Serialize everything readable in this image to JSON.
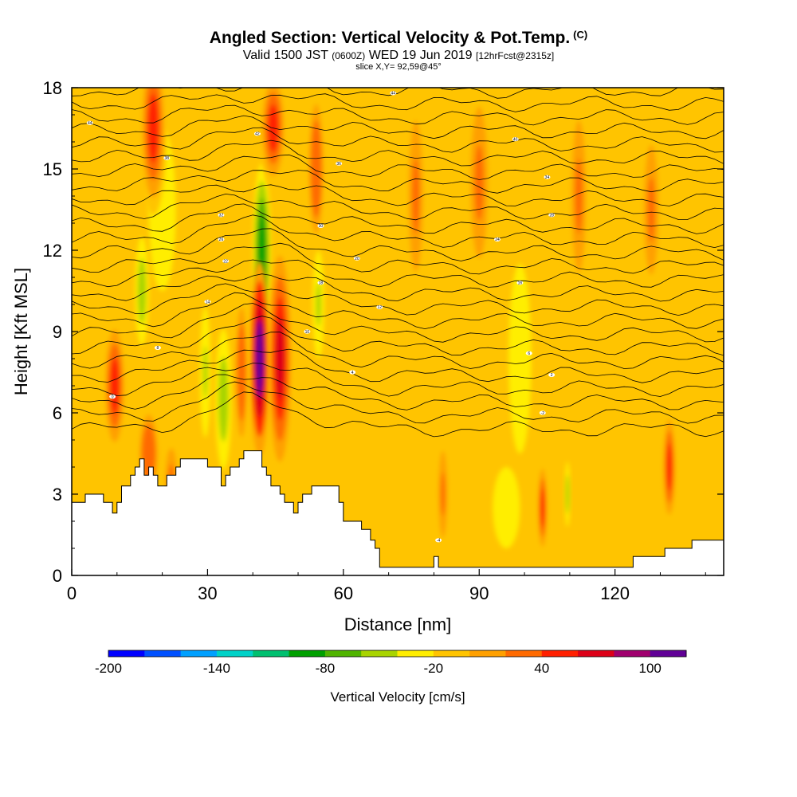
{
  "header": {
    "title": "Angled Section: Vertical Velocity & Pot.Temp.",
    "title_tag": "(C)",
    "valid_prefix": "Valid 1500 JST",
    "valid_utc": "(0600Z)",
    "valid_date": "WED 19 Jun 2019",
    "forecast": "[12hrFcst@2315z]",
    "slice": "slice X,Y= 92,59@45°"
  },
  "chart_data": {
    "type": "heatmap",
    "xlabel": "Distance [nm]",
    "ylabel": "Height [Kft MSL]",
    "xlim": [
      0,
      144
    ],
    "ylim": [
      0,
      18
    ],
    "x_ticks": [
      0,
      30,
      60,
      90,
      120
    ],
    "y_ticks": [
      0,
      3,
      6,
      9,
      12,
      15,
      18
    ],
    "colorbar": {
      "title": "Vertical Velocity [cm/s]",
      "min": -200,
      "max": 120,
      "step": 20,
      "tick_values": [
        -200,
        -140,
        -80,
        -20,
        40,
        100
      ],
      "colors": [
        "#0000ff",
        "#0050ff",
        "#00a0ff",
        "#00d2c8",
        "#00c070",
        "#00a000",
        "#50b400",
        "#a8d400",
        "#ffee00",
        "#ffc400",
        "#ffa000",
        "#ff6a00",
        "#ff2000",
        "#dc0018",
        "#a0006e",
        "#600096"
      ]
    },
    "terrain": {
      "x": [
        0,
        3,
        7,
        9,
        10,
        11,
        13,
        14,
        15,
        16,
        17,
        18,
        19,
        20,
        21,
        23,
        24,
        25,
        28,
        30,
        33,
        34,
        35,
        37,
        38,
        40,
        42,
        43,
        44,
        46,
        47,
        48,
        49,
        50,
        51,
        53,
        57,
        59,
        60,
        64,
        66,
        67,
        68,
        70,
        79,
        80,
        81,
        84,
        95,
        105,
        114,
        124,
        128,
        131,
        137,
        144
      ],
      "y": [
        2.7,
        3.0,
        2.7,
        2.3,
        2.7,
        3.3,
        3.7,
        4.0,
        4.3,
        3.7,
        4.0,
        3.7,
        3.3,
        3.3,
        3.7,
        4.0,
        4.3,
        4.3,
        4.3,
        4.0,
        3.3,
        3.7,
        4.0,
        4.3,
        4.6,
        4.6,
        4.0,
        3.7,
        3.3,
        3.0,
        2.7,
        2.7,
        2.3,
        2.7,
        3.0,
        3.3,
        3.3,
        2.7,
        2.0,
        1.7,
        1.3,
        1.0,
        0.3,
        0.3,
        0.3,
        0.7,
        0.3,
        0.3,
        0.3,
        0.3,
        0.3,
        0.7,
        0.7,
        1.0,
        1.3,
        1.3
      ]
    },
    "updrafts": [
      {
        "x": 41.5,
        "y": 8.0,
        "half_width": 2.2,
        "half_height": 3.6,
        "value": 110
      },
      {
        "x": 46.0,
        "y": 8.0,
        "half_width": 2.4,
        "half_height": 3.8,
        "value": 75
      },
      {
        "x": 18.0,
        "y": 16.5,
        "half_width": 3.0,
        "half_height": 3.2,
        "value": 50
      },
      {
        "x": 44.5,
        "y": 16.5,
        "half_width": 3.0,
        "half_height": 2.2,
        "value": 50
      },
      {
        "x": 9.5,
        "y": 7.0,
        "half_width": 2.6,
        "half_height": 2.6,
        "value": 42
      },
      {
        "x": 17.0,
        "y": 4.5,
        "half_width": 2.5,
        "half_height": 1.8,
        "value": 38
      },
      {
        "x": 104.0,
        "y": 2.5,
        "half_width": 1.2,
        "half_height": 1.8,
        "value": 44
      },
      {
        "x": 132.0,
        "y": 4.0,
        "half_width": 1.6,
        "half_height": 2.2,
        "value": 40
      },
      {
        "x": 37.5,
        "y": 7.5,
        "half_width": 1.6,
        "half_height": 3.0,
        "value": 34
      },
      {
        "x": 54.0,
        "y": 15.0,
        "half_width": 2.0,
        "half_height": 3.0,
        "value": 34
      },
      {
        "x": 76.0,
        "y": 14.0,
        "half_width": 2.0,
        "half_height": 3.5,
        "value": 22
      },
      {
        "x": 90.0,
        "y": 14.5,
        "half_width": 2.4,
        "half_height": 3.5,
        "value": 22
      },
      {
        "x": 82.0,
        "y": 3.0,
        "half_width": 1.2,
        "half_height": 2.0,
        "value": 26
      },
      {
        "x": 112.0,
        "y": 14.0,
        "half_width": 2.0,
        "half_height": 3.5,
        "value": 22
      },
      {
        "x": 22.0,
        "y": 3.5,
        "half_width": 1.6,
        "half_height": 1.5,
        "value": 28
      },
      {
        "x": 128.0,
        "y": 13.5,
        "half_width": 2.0,
        "half_height": 3.0,
        "value": 22
      }
    ],
    "downdrafts": [
      {
        "x": 42.0,
        "y": 12.0,
        "half_width": 2.0,
        "half_height": 3.2,
        "value": -85
      },
      {
        "x": 15.5,
        "y": 10.5,
        "half_width": 1.5,
        "half_height": 2.0,
        "value": -60
      },
      {
        "x": 33.5,
        "y": 6.5,
        "half_width": 1.8,
        "half_height": 2.6,
        "value": -55
      },
      {
        "x": 54.5,
        "y": 10.0,
        "half_width": 1.3,
        "half_height": 2.0,
        "value": -45
      },
      {
        "x": 109.5,
        "y": 3.0,
        "half_width": 0.6,
        "half_height": 1.2,
        "value": -55
      },
      {
        "x": 29.5,
        "y": 7.5,
        "half_width": 1.2,
        "half_height": 2.4,
        "value": -45
      },
      {
        "x": 20.0,
        "y": 13.5,
        "half_width": 3.0,
        "half_height": 3.0,
        "value": -30
      },
      {
        "x": 99.0,
        "y": 8.0,
        "half_width": 2.5,
        "half_height": 3.5,
        "value": -28
      },
      {
        "x": 96.0,
        "y": 2.5,
        "half_width": 3.0,
        "half_height": 1.5,
        "value": -26
      }
    ],
    "contour_labels": [
      {
        "x": 4,
        "y": 16.7,
        "text": "44"
      },
      {
        "x": 41,
        "y": 16.3,
        "text": "42"
      },
      {
        "x": 71,
        "y": 17.8,
        "text": "44"
      },
      {
        "x": 98,
        "y": 16.1,
        "text": "40"
      },
      {
        "x": 21,
        "y": 15.4,
        "text": "38"
      },
      {
        "x": 59,
        "y": 15.2,
        "text": "36"
      },
      {
        "x": 105,
        "y": 14.7,
        "text": "34"
      },
      {
        "x": 33,
        "y": 13.3,
        "text": "32"
      },
      {
        "x": 55,
        "y": 12.9,
        "text": "30"
      },
      {
        "x": 106,
        "y": 13.3,
        "text": "28"
      },
      {
        "x": 33,
        "y": 12.4,
        "text": "26"
      },
      {
        "x": 94,
        "y": 12.4,
        "text": "24"
      },
      {
        "x": 34,
        "y": 11.6,
        "text": "22"
      },
      {
        "x": 63,
        "y": 11.7,
        "text": "20"
      },
      {
        "x": 55,
        "y": 10.8,
        "text": "18"
      },
      {
        "x": 99,
        "y": 10.8,
        "text": "16"
      },
      {
        "x": 30,
        "y": 10.1,
        "text": "14"
      },
      {
        "x": 68,
        "y": 9.9,
        "text": "12"
      },
      {
        "x": 52,
        "y": 9.0,
        "text": "10"
      },
      {
        "x": 19,
        "y": 8.4,
        "text": "8"
      },
      {
        "x": 101,
        "y": 8.2,
        "text": "6"
      },
      {
        "x": 62,
        "y": 7.5,
        "text": "4"
      },
      {
        "x": 106,
        "y": 7.4,
        "text": "2"
      },
      {
        "x": 9,
        "y": 6.6,
        "text": "0"
      },
      {
        "x": 104,
        "y": 6.0,
        "text": "-2"
      },
      {
        "x": 81,
        "y": 1.3,
        "text": "-4"
      }
    ]
  }
}
